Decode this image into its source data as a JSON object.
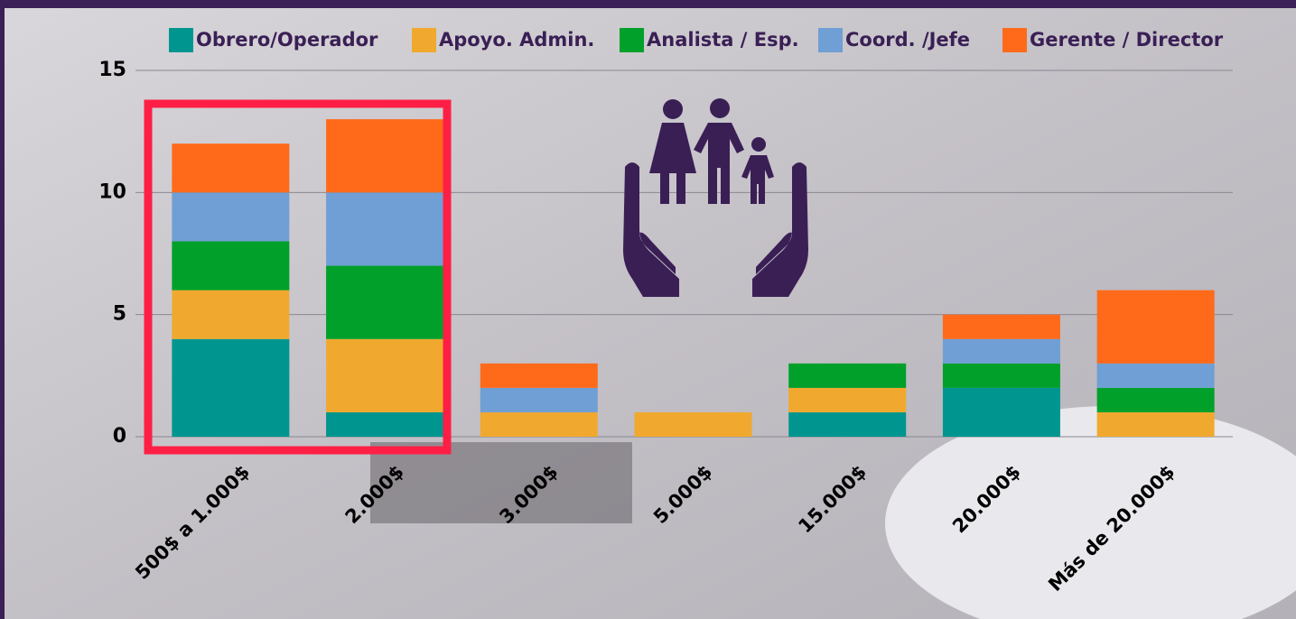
{
  "chart_data": {
    "type": "stacked-bar",
    "categories": [
      "500$ a 1.000$",
      "2.000$",
      "3.000$",
      "5.000$",
      "15.000$",
      "20.000$",
      "Más de 20.000$"
    ],
    "series": [
      {
        "name": "Obrero/Operador",
        "color": "#00968f",
        "values": [
          4,
          1,
          0,
          0,
          1,
          2,
          0
        ]
      },
      {
        "name": "Apoyo. Admin.",
        "color": "#f0a92e",
        "values": [
          2,
          3,
          1,
          1,
          1,
          0,
          1
        ]
      },
      {
        "name": "Analista / Esp.",
        "color": "#00a02a",
        "values": [
          2,
          3,
          0,
          0,
          1,
          1,
          1
        ]
      },
      {
        "name": "Coord. /Jefe",
        "color": "#6f9fd4",
        "values": [
          2,
          3,
          1,
          0,
          0,
          1,
          1
        ]
      },
      {
        "name": "Gerente / Director",
        "color": "#ff6a1a",
        "values": [
          2,
          3,
          1,
          0,
          0,
          1,
          3
        ]
      }
    ],
    "ylim": [
      0,
      15
    ],
    "yticks": [
      0,
      5,
      10,
      15
    ],
    "grid": true
  }
}
